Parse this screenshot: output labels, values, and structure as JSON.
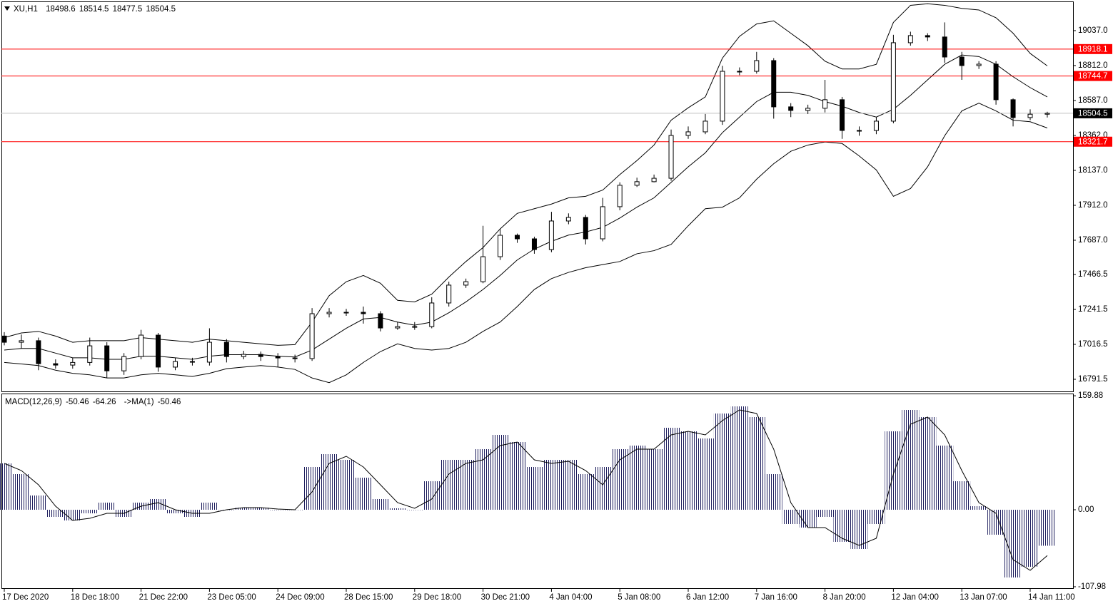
{
  "chart_data": [
    {
      "type": "candlestick",
      "title": "XU,H1",
      "categories": [
        "17 Dec 2020",
        null,
        null,
        null,
        "18 Dec 18:00",
        null,
        null,
        null,
        "21 Dec 22:00",
        null,
        null,
        null,
        "23 Dec 05:00",
        null,
        null,
        null,
        "24 Dec 09:00",
        null,
        null,
        null,
        "28 Dec 15:00",
        null,
        null,
        null,
        "29 Dec 18:00",
        null,
        null,
        null,
        "30 Dec 21:00",
        null,
        null,
        null,
        "4 Jan 04:00",
        null,
        null,
        null,
        "5 Jan 08:00",
        null,
        null,
        null,
        "6 Jan 12:00",
        null,
        null,
        null,
        "7 Jan 16:00",
        null,
        null,
        null,
        "8 Jan 20:00",
        null,
        null,
        null,
        "12 Jan 04:00",
        null,
        null,
        null,
        "13 Jan 07:00",
        null,
        null,
        null,
        "14 Jan 11:00",
        null
      ],
      "open": [
        17070,
        17030,
        17040,
        16892,
        16883,
        16900,
        17007,
        16846,
        16938,
        17076,
        16870,
        16906,
        16902,
        17030,
        16938,
        16952,
        16938,
        16929,
        16925,
        17214,
        17223,
        17223,
        17214,
        17122,
        17131,
        17131,
        17283,
        17398,
        17420,
        17581,
        17719,
        17696,
        17627,
        17811,
        17834,
        17696,
        17903,
        18041,
        18064,
        18086,
        18362,
        18385,
        18454,
        18775,
        18775,
        18844,
        18546,
        18523,
        18537,
        18592,
        18394,
        18394,
        18454,
        18959,
        19005,
        18996,
        18867,
        18812,
        18821,
        18592,
        18477,
        18498.6
      ],
      "high": [
        17095,
        17080,
        17060,
        16920,
        16930,
        17060,
        17030,
        16960,
        17110,
        17090,
        16930,
        16930,
        17120,
        17050,
        16975,
        16970,
        16960,
        16950,
        17250,
        17250,
        17245,
        17260,
        17230,
        17160,
        17160,
        17320,
        17420,
        17440,
        17780,
        17760,
        17730,
        17710,
        17870,
        17860,
        17850,
        17960,
        18060,
        18090,
        18110,
        18400,
        18420,
        18500,
        18810,
        18800,
        18900,
        18860,
        18570,
        18560,
        18720,
        18610,
        18420,
        18480,
        19010,
        19030,
        19020,
        19090,
        18900,
        18840,
        18840,
        18600,
        18530,
        18514.5
      ],
      "low": [
        17010,
        16990,
        16850,
        16860,
        16860,
        16880,
        16800,
        16820,
        16920,
        16840,
        16850,
        16880,
        16880,
        16900,
        16920,
        16910,
        16870,
        16900,
        16910,
        17190,
        17200,
        17150,
        17100,
        17110,
        17110,
        17120,
        17260,
        17380,
        17410,
        17560,
        17670,
        17600,
        17610,
        17790,
        17660,
        17680,
        17880,
        18030,
        18060,
        18070,
        18340,
        18370,
        18430,
        18750,
        18760,
        18470,
        18480,
        18500,
        18510,
        18340,
        18360,
        18370,
        18440,
        18940,
        18970,
        18830,
        18720,
        18790,
        18560,
        18420,
        18460,
        18477.5
      ],
      "close": [
        17030,
        17040,
        16892,
        16883,
        16900,
        17007,
        16846,
        16938,
        17076,
        16870,
        16906,
        16902,
        17030,
        16938,
        16952,
        16938,
        16929,
        16925,
        17214,
        17223,
        17223,
        17214,
        17122,
        17131,
        17131,
        17283,
        17398,
        17420,
        17581,
        17719,
        17696,
        17627,
        17811,
        17834,
        17696,
        17903,
        18041,
        18064,
        18086,
        18362,
        18385,
        18454,
        18775,
        18775,
        18844,
        18546,
        18523,
        18537,
        18592,
        18394,
        18394,
        18454,
        18959,
        19005,
        18996,
        18867,
        18812,
        18821,
        18592,
        18477,
        18498.6,
        18504.5
      ],
      "bands": {
        "upper": [
          17060,
          17090,
          17100,
          17070,
          17030,
          17040,
          17040,
          17040,
          17060,
          17050,
          17040,
          17030,
          17050,
          17040,
          17030,
          17020,
          17010,
          17015,
          17160,
          17330,
          17420,
          17460,
          17410,
          17300,
          17290,
          17340,
          17450,
          17550,
          17640,
          17760,
          17860,
          17890,
          17920,
          17960,
          17970,
          18010,
          18110,
          18200,
          18300,
          18460,
          18540,
          18610,
          18860,
          19000,
          19080,
          19100,
          19020,
          18940,
          18840,
          18790,
          18790,
          18820,
          19090,
          19200,
          19210,
          19200,
          19180,
          19170,
          19120,
          19020,
          18890,
          18810
        ],
        "middle": [
          16980,
          16990,
          16990,
          16960,
          16930,
          16930,
          16920,
          16920,
          16940,
          16940,
          16930,
          16920,
          16940,
          16950,
          16950,
          16950,
          16940,
          16935,
          16980,
          17050,
          17120,
          17180,
          17190,
          17160,
          17140,
          17160,
          17220,
          17290,
          17370,
          17460,
          17560,
          17630,
          17680,
          17720,
          17740,
          17770,
          17830,
          17900,
          17960,
          18060,
          18160,
          18250,
          18380,
          18480,
          18580,
          18640,
          18640,
          18620,
          18580,
          18550,
          18510,
          18480,
          18530,
          18620,
          18720,
          18820,
          18880,
          18870,
          18820,
          18740,
          18670,
          18610
        ],
        "lower": [
          16900,
          16890,
          16880,
          16850,
          16830,
          16820,
          16800,
          16800,
          16820,
          16830,
          16820,
          16810,
          16830,
          16860,
          16870,
          16880,
          16870,
          16855,
          16800,
          16770,
          16820,
          16900,
          16970,
          17020,
          16990,
          16980,
          16990,
          17030,
          17100,
          17160,
          17260,
          17370,
          17440,
          17480,
          17510,
          17530,
          17550,
          17600,
          17620,
          17660,
          17780,
          17890,
          17900,
          17960,
          18080,
          18180,
          18260,
          18300,
          18320,
          18310,
          18230,
          18140,
          17970,
          18020,
          18160,
          18360,
          18520,
          18570,
          18520,
          18460,
          18450,
          18410
        ]
      },
      "band_color": "#000000",
      "up_color": "#ffffff",
      "down_color": "#000000",
      "candle_outline": "#000000",
      "ylim": [
        16713.5,
        19225
      ],
      "yticks": [
        16791.5,
        17016.5,
        17241.5,
        17466.5,
        {
          "value": 17687,
          "label": "17687.0"
        },
        {
          "value": 17912,
          "label": "17912.0"
        },
        {
          "value": 18137,
          "label": "18137.0"
        },
        {
          "value": 18362,
          "label": "18362.0"
        },
        {
          "value": 18587,
          "label": "18587.0"
        },
        {
          "value": 18812,
          "label": "18812.0"
        },
        {
          "value": 19037,
          "label": "19037.0"
        }
      ],
      "grid": false,
      "levels": [
        {
          "value": 18918.1,
          "color": "#ff0000"
        },
        {
          "value": 18744.7,
          "color": "#ff0000"
        },
        {
          "value": 18321.7,
          "color": "#ff0000"
        }
      ],
      "price_line_color": "#c0c0c0"
    },
    {
      "type": "macd",
      "title": "MACD(12,26,9)",
      "ma_label": "->MA(1)",
      "histogram": [
        65,
        50,
        20,
        -10,
        -15,
        -5,
        10,
        -10,
        10,
        15,
        -5,
        -10,
        10,
        0,
        3,
        3,
        0,
        0,
        60,
        78,
        70,
        45,
        15,
        2,
        0,
        40,
        70,
        70,
        85,
        105,
        95,
        60,
        70,
        70,
        50,
        60,
        85,
        90,
        85,
        115,
        110,
        100,
        135,
        145,
        130,
        50,
        -20,
        -25,
        -10,
        -45,
        -55,
        -20,
        110,
        140,
        130,
        90,
        40,
        5,
        -35,
        -95,
        -80,
        -50.46
      ],
      "signal": [
        65,
        55,
        35,
        5,
        -15,
        -12,
        -5,
        -5,
        5,
        10,
        0,
        -5,
        -5,
        0,
        3,
        3,
        1,
        0,
        25,
        65,
        75,
        60,
        35,
        10,
        2,
        15,
        50,
        65,
        70,
        90,
        95,
        70,
        65,
        68,
        55,
        35,
        70,
        85,
        85,
        105,
        110,
        105,
        125,
        140,
        135,
        85,
        10,
        -25,
        -25,
        -40,
        -50,
        -40,
        50,
        120,
        130,
        105,
        55,
        10,
        -5,
        -70,
        -85,
        -64.26
      ],
      "histogram_color": "#1c1c5c",
      "signal_color": "#000000",
      "ylim": [
        -111,
        163
      ],
      "yticks": [
        159.88,
        {
          "value": 0,
          "label": "0.00"
        },
        -107.98
      ]
    }
  ]
}
